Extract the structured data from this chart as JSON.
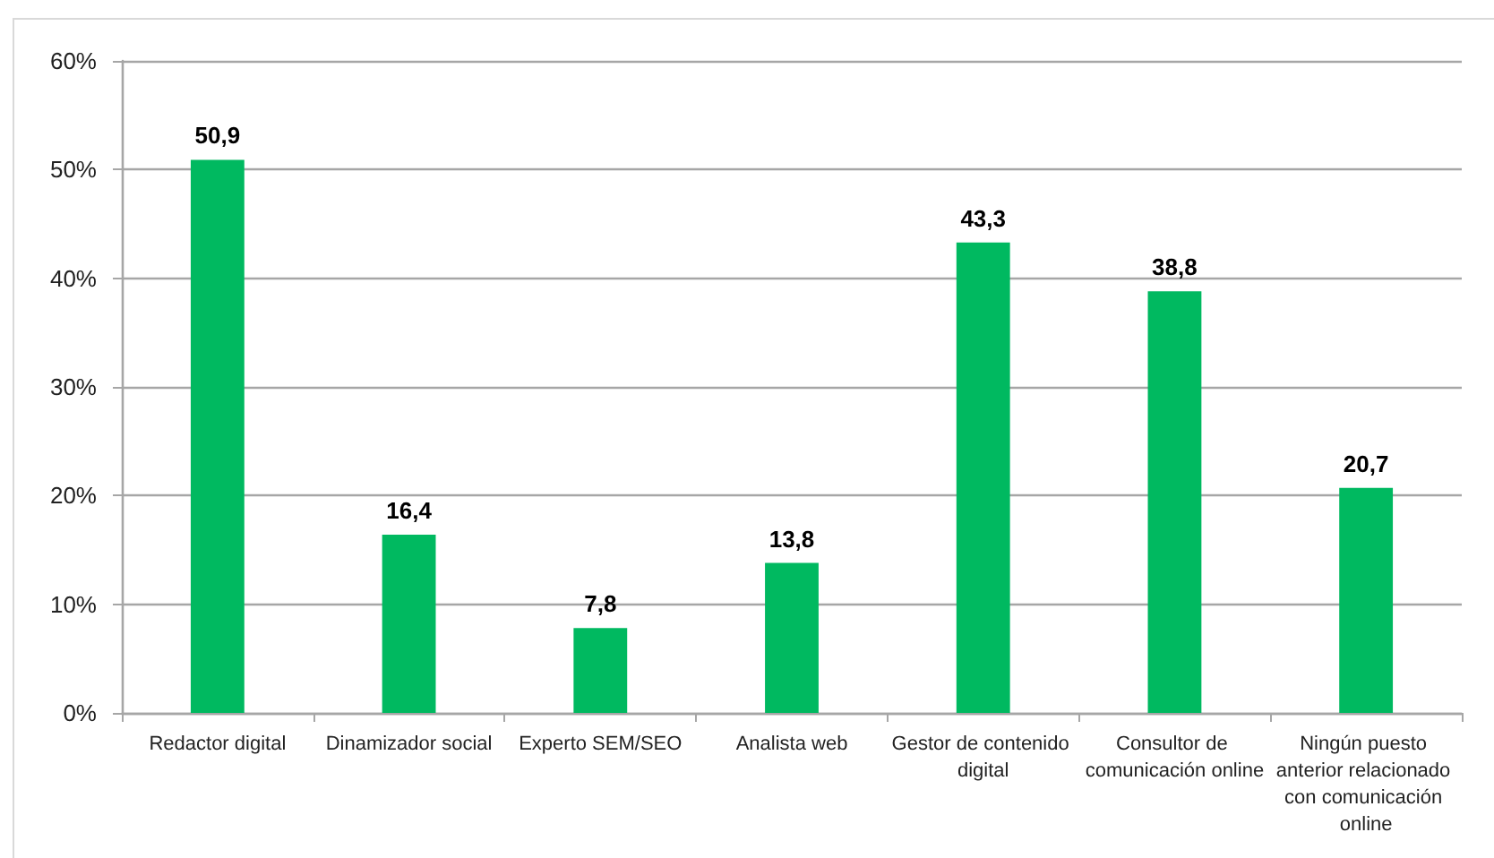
{
  "chart_data": {
    "type": "bar",
    "categories": [
      "Redactor digital",
      "Dinamizador social",
      "Experto SEM/SEO",
      "Analista web",
      "Gestor de contenido digital",
      "Consultor de comunicación online",
      "Ningún puesto anterior relacionado con comunicación online"
    ],
    "values": [
      50.9,
      16.4,
      7.8,
      13.8,
      43.3,
      38.8,
      20.7
    ],
    "value_labels": [
      "50,9",
      "16,4",
      "7,8",
      "13,8",
      "43,3",
      "38,8",
      "20,7"
    ],
    "color": "#00b960",
    "ylim": [
      0,
      60
    ],
    "yticks": [
      {
        "value": 0,
        "label": "0%"
      },
      {
        "value": 10,
        "label": "10%"
      },
      {
        "value": 20,
        "label": "20%"
      },
      {
        "value": 30,
        "label": "30%"
      },
      {
        "value": 40,
        "label": "40%"
      },
      {
        "value": 50,
        "label": "50%"
      },
      {
        "value": 60,
        "label": "60%"
      }
    ],
    "grid": "y"
  }
}
